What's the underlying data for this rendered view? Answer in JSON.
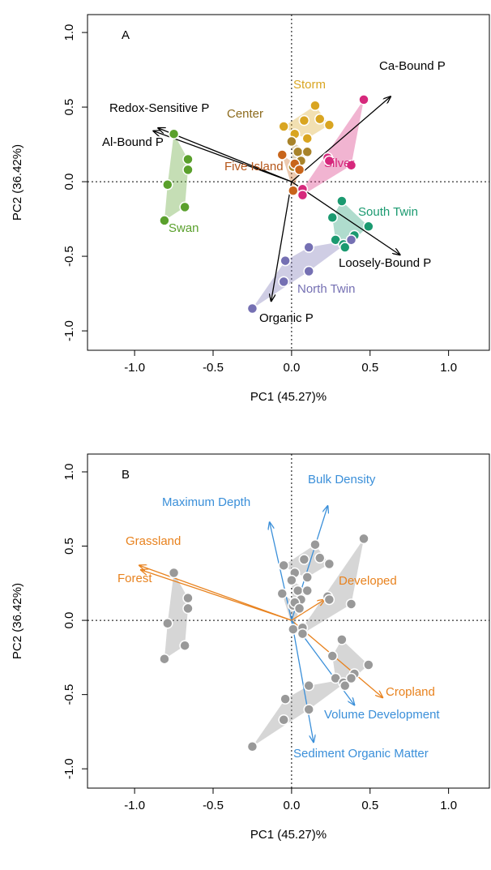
{
  "chart_data": [
    {
      "type": "biplot",
      "title": "A",
      "xlabel": "PC1 (45.27)%",
      "ylabel": "PC2 (36.42%)",
      "xlim": [
        -1.3,
        1.26
      ],
      "ylim": [
        -1.13,
        1.12
      ],
      "xticks": [
        {
          "value": -1,
          "label": "-1.0"
        },
        -0.5,
        {
          "value": 0,
          "label": "0.0"
        },
        0.5,
        {
          "value": 1,
          "label": "1.0"
        }
      ],
      "yticks": [
        {
          "value": -1,
          "label": "-1.0"
        },
        -0.5,
        {
          "value": 0,
          "label": "0.0"
        },
        0.5,
        {
          "value": 1,
          "label": "1.0"
        }
      ],
      "series": [
        {
          "name": "Swan",
          "color": "#5aa02c",
          "x": [
            -0.75,
            -0.66,
            -0.66,
            -0.79,
            -0.68,
            -0.81
          ],
          "y": [
            0.32,
            0.15,
            0.08,
            -0.02,
            -0.17,
            -0.26
          ]
        },
        {
          "name": "Storm",
          "color": "#d9a521",
          "x": [
            0.15,
            0.18,
            0.24,
            0.08,
            -0.05,
            0.02,
            0.1
          ],
          "y": [
            0.51,
            0.42,
            0.38,
            0.41,
            0.37,
            0.32,
            0.29
          ]
        },
        {
          "name": "Center",
          "color": "#a8832a",
          "x": [
            0.0,
            0.04,
            0.1,
            0.06,
            0.01
          ],
          "y": [
            0.27,
            0.2,
            0.2,
            0.14,
            0.1
          ]
        },
        {
          "name": "Five Island",
          "color": "#c8651b",
          "x": [
            -0.06,
            0.02,
            0.05,
            0.01
          ],
          "y": [
            0.18,
            0.12,
            0.08,
            -0.06
          ]
        },
        {
          "name": "Silver",
          "color": "#d6287c",
          "x": [
            0.46,
            0.23,
            0.38,
            0.07,
            0.07,
            0.24
          ],
          "y": [
            0.55,
            0.16,
            0.11,
            -0.05,
            -0.09,
            0.14
          ]
        },
        {
          "name": "South Twin",
          "color": "#1b9a70",
          "x": [
            0.32,
            0.49,
            0.28,
            0.4,
            0.33,
            0.26,
            0.34
          ],
          "y": [
            -0.13,
            -0.3,
            -0.39,
            -0.36,
            -0.42,
            -0.24,
            -0.44
          ]
        },
        {
          "name": "North Twin",
          "color": "#7570b3",
          "x": [
            0.11,
            -0.04,
            0.11,
            -0.05,
            0.38,
            -0.25
          ],
          "y": [
            -0.44,
            -0.53,
            -0.6,
            -0.67,
            -0.39,
            -0.85
          ]
        }
      ],
      "arrows": [
        {
          "label": "Ca-Bound P",
          "color": "#000000",
          "x": 0.63,
          "y": 0.57
        },
        {
          "label": "Redox-Sensitive P",
          "color": "#000000",
          "x": -0.85,
          "y": 0.36
        },
        {
          "label": "Al-Bound P",
          "color": "#000000",
          "x": -0.88,
          "y": 0.34
        },
        {
          "label": "Loosely-Bound P",
          "color": "#000000",
          "x": 0.69,
          "y": -0.49
        },
        {
          "label": "Organic P",
          "color": "#000000",
          "x": -0.13,
          "y": -0.8
        }
      ]
    },
    {
      "type": "biplot",
      "title": "B",
      "xlabel": "PC1 (45.27)%",
      "ylabel": "PC2 (36.42%)",
      "xlim": [
        -1.3,
        1.26
      ],
      "ylim": [
        -1.13,
        1.12
      ],
      "xticks": [
        {
          "value": -1,
          "label": "-1.0"
        },
        -0.5,
        {
          "value": 0,
          "label": "0.0"
        },
        0.5,
        {
          "value": 1,
          "label": "1.0"
        }
      ],
      "yticks": [
        {
          "value": -1,
          "label": "-1.0"
        },
        -0.5,
        {
          "value": 0,
          "label": "0.0"
        },
        0.5,
        {
          "value": 1,
          "label": "1.0"
        }
      ],
      "series": [
        {
          "color": "#999999",
          "x": [
            -0.75,
            -0.66,
            -0.66,
            -0.79,
            -0.68,
            -0.81
          ],
          "y": [
            0.32,
            0.15,
            0.08,
            -0.02,
            -0.17,
            -0.26
          ]
        },
        {
          "color": "#999999",
          "x": [
            0.15,
            0.18,
            0.24,
            0.08,
            -0.05,
            0.02,
            0.1
          ],
          "y": [
            0.51,
            0.42,
            0.38,
            0.41,
            0.37,
            0.32,
            0.29
          ]
        },
        {
          "color": "#999999",
          "x": [
            0.0,
            0.04,
            0.1,
            0.06,
            0.01
          ],
          "y": [
            0.27,
            0.2,
            0.2,
            0.14,
            0.1
          ]
        },
        {
          "color": "#999999",
          "x": [
            -0.06,
            0.02,
            0.05,
            0.01
          ],
          "y": [
            0.18,
            0.12,
            0.08,
            -0.06
          ]
        },
        {
          "color": "#999999",
          "x": [
            0.46,
            0.23,
            0.38,
            0.07,
            0.07,
            0.24
          ],
          "y": [
            0.55,
            0.16,
            0.11,
            -0.05,
            -0.09,
            0.14
          ]
        },
        {
          "color": "#999999",
          "x": [
            0.32,
            0.49,
            0.28,
            0.4,
            0.33,
            0.26,
            0.34
          ],
          "y": [
            -0.13,
            -0.3,
            -0.39,
            -0.36,
            -0.42,
            -0.24,
            -0.44
          ]
        },
        {
          "color": "#999999",
          "x": [
            0.11,
            -0.04,
            0.11,
            -0.05,
            0.38,
            -0.25
          ],
          "y": [
            -0.44,
            -0.53,
            -0.6,
            -0.67,
            -0.39,
            -0.85
          ]
        }
      ],
      "arrows": [
        {
          "label": "Bulk Density",
          "color": "#3a8fd9",
          "x": 0.23,
          "y": 0.77
        },
        {
          "label": "Maximum Depth",
          "color": "#3a8fd9",
          "x": -0.14,
          "y": 0.66
        },
        {
          "label": "Grassland",
          "color": "#e8821e",
          "x": -0.97,
          "y": 0.37
        },
        {
          "label": "Forest",
          "color": "#e8821e",
          "x": -0.96,
          "y": 0.34
        },
        {
          "label": "Developed",
          "color": "#e8821e",
          "x": 0.21,
          "y": 0.14
        },
        {
          "label": "Cropland",
          "color": "#e8821e",
          "x": 0.58,
          "y": -0.52
        },
        {
          "label": "Volume Development",
          "color": "#3a8fd9",
          "x": 0.4,
          "y": -0.57
        },
        {
          "label": "Sediment Organic Matter",
          "color": "#3a8fd9",
          "x": 0.14,
          "y": -0.82
        }
      ]
    }
  ]
}
